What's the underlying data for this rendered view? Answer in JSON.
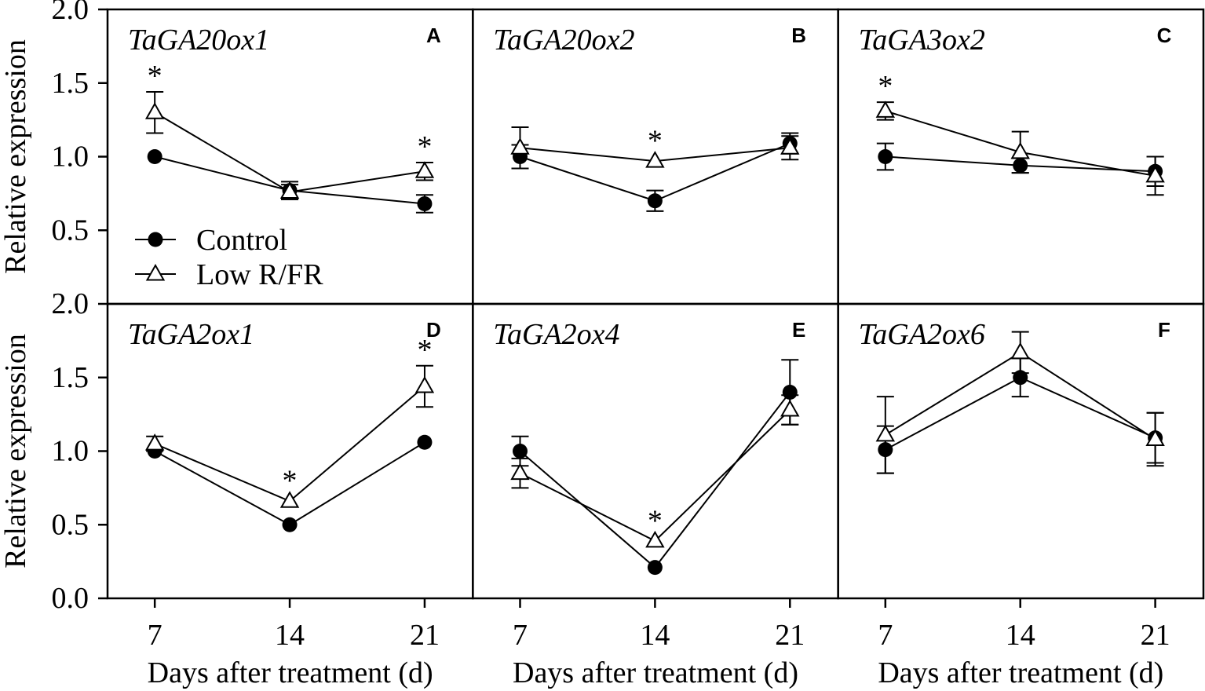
{
  "chart_data": {
    "type": "line",
    "x": [
      7,
      14,
      21
    ],
    "xlim": [
      4.55,
      23.5
    ],
    "ylim": [
      0,
      2.0
    ],
    "yticks_by_row": [
      [
        "2.0",
        "1.5",
        "1.0",
        "0.5"
      ],
      [
        "2.0",
        "1.5",
        "1.0",
        "0.5",
        "0.0"
      ]
    ],
    "xlabel": "Days after treatment (d)",
    "ylabel": "Relative expression",
    "legend": {
      "control": "Control",
      "low_rfr": "Low R/FR"
    },
    "significance_marker": "*",
    "grid": false,
    "colors": {
      "ink": "#000000",
      "open_marker_fill": "#ffffff",
      "background": "#ffffff"
    },
    "panels": [
      {
        "label": "A",
        "gene": "TaGA20ox1",
        "control": {
          "values": [
            1.0,
            0.77,
            0.68
          ],
          "errors": [
            0.02,
            0.06,
            0.06
          ]
        },
        "low_rfr": {
          "values": [
            1.3,
            0.76,
            0.9
          ],
          "errors": [
            0.14,
            0.05,
            0.06
          ]
        },
        "significant": [
          7,
          21
        ]
      },
      {
        "label": "B",
        "gene": "TaGA20ox2",
        "control": {
          "values": [
            1.0,
            0.7,
            1.09
          ],
          "errors": [
            0.08,
            0.07,
            0.07
          ]
        },
        "low_rfr": {
          "values": [
            1.06,
            0.97,
            1.06
          ],
          "errors": [
            0.14,
            0.03,
            0.08
          ]
        },
        "significant": [
          14
        ]
      },
      {
        "label": "C",
        "gene": "TaGA3ox2",
        "control": {
          "values": [
            1.0,
            0.94,
            0.9
          ],
          "errors": [
            0.09,
            0.05,
            0.1
          ]
        },
        "low_rfr": {
          "values": [
            1.31,
            1.03,
            0.87
          ],
          "errors": [
            0.06,
            0.14,
            0.13
          ]
        },
        "significant": [
          7
        ]
      },
      {
        "label": "D",
        "gene": "TaGA2ox1",
        "control": {
          "values": [
            1.0,
            0.5,
            1.06
          ],
          "errors": [
            0.02,
            0.02,
            0.02
          ]
        },
        "low_rfr": {
          "values": [
            1.05,
            0.66,
            1.44
          ],
          "errors": [
            0.05,
            0.03,
            0.14
          ]
        },
        "significant": [
          14,
          21
        ]
      },
      {
        "label": "E",
        "gene": "TaGA2ox4",
        "control": {
          "values": [
            1.0,
            0.21,
            1.4
          ],
          "errors": [
            0.1,
            0.02,
            0.22
          ]
        },
        "low_rfr": {
          "values": [
            0.85,
            0.39,
            1.28
          ],
          "errors": [
            0.1,
            0.03,
            0.1
          ]
        },
        "significant": [
          14
        ]
      },
      {
        "label": "F",
        "gene": "TaGA2ox6",
        "control": {
          "values": [
            1.01,
            1.5,
            1.09
          ],
          "errors": [
            0.16,
            0.13,
            0.17
          ]
        },
        "low_rfr": {
          "values": [
            1.11,
            1.67,
            1.08
          ],
          "errors": [
            0.26,
            0.14,
            0.18
          ]
        },
        "significant": []
      }
    ]
  }
}
